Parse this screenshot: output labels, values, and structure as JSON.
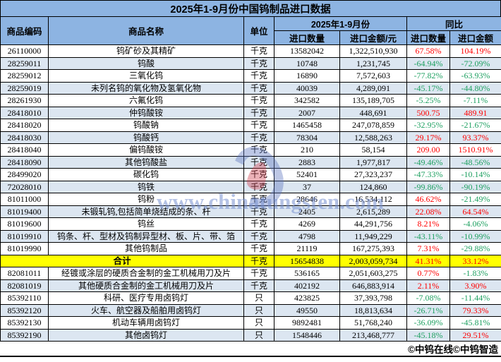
{
  "title": "2025年1-9月份中国钨制品进口数据",
  "table": {
    "headers": {
      "code": "商品编码",
      "name": "商品名称",
      "unit": "单位",
      "period_group": "2025年1-9月份",
      "yoy_group": "同比",
      "qty": "进口数量",
      "amount": "进口金额/元",
      "yoy_qty": "进口数量",
      "yoy_amount": "进口金额"
    },
    "rows": [
      {
        "code": "26110000",
        "name": "钨矿砂及其精矿",
        "unit": "千克",
        "qty": "13582042",
        "amount": "1,322,510,930",
        "yoy_qty": "67.58%",
        "yoy_amount": "104.19%"
      },
      {
        "code": "28259011",
        "name": "钨酸",
        "unit": "千克",
        "qty": "10748",
        "amount": "1,231,745",
        "yoy_qty": "-64.94%",
        "yoy_amount": "-72.09%"
      },
      {
        "code": "28259012",
        "name": "三氧化钨",
        "unit": "千克",
        "qty": "16890",
        "amount": "7,572,603",
        "yoy_qty": "-77.82%",
        "yoy_amount": "-63.93%"
      },
      {
        "code": "28259019",
        "name": "未列名钨的氧化物及氢氧化物",
        "unit": "千克",
        "qty": "40039",
        "amount": "4,289,091",
        "yoy_qty": "-45.17%",
        "yoy_amount": "-44.80%"
      },
      {
        "code": "28261930",
        "name": "六氟化钨",
        "unit": "千克",
        "qty": "342582",
        "amount": "135,189,705",
        "yoy_qty": "-5.25%",
        "yoy_amount": "-7.11%"
      },
      {
        "code": "28418010",
        "name": "仲钨酸铵",
        "unit": "千克",
        "qty": "2007",
        "amount": "448,691",
        "yoy_qty": "500.75",
        "yoy_amount": "489.91"
      },
      {
        "code": "28418020",
        "name": "钨酸钠",
        "unit": "千克",
        "qty": "1465458",
        "amount": "247,078,859",
        "yoy_qty": "-32.95%",
        "yoy_amount": "-21.67%"
      },
      {
        "code": "28418030",
        "name": "钨酸钙",
        "unit": "千克",
        "qty": "78304",
        "amount": "12,588,263",
        "yoy_qty": "29.17%",
        "yoy_amount": "93.37%"
      },
      {
        "code": "28418040",
        "name": "偏钨酸铵",
        "unit": "千克",
        "qty": "210",
        "amount": "58,154",
        "yoy_qty": "209.00",
        "yoy_amount": "1510.91%"
      },
      {
        "code": "28418090",
        "name": "其他钨酸盐",
        "unit": "千克",
        "qty": "2883",
        "amount": "1,977,817",
        "yoy_qty": "-49.46%",
        "yoy_amount": "-48.56%"
      },
      {
        "code": "28499020",
        "name": "碳化钨",
        "unit": "千克",
        "qty": "52401",
        "amount": "27,323,237",
        "yoy_qty": "-47.33%",
        "yoy_amount": "-10.14%"
      },
      {
        "code": "72028010",
        "name": "钨铁",
        "unit": "千克",
        "qty": "37",
        "amount": "124,860",
        "yoy_qty": "-99.86%",
        "yoy_amount": "-90.19%"
      },
      {
        "code": "81011000",
        "name": "钨粉",
        "unit": "千克",
        "qty": "28646",
        "amount": "16,534,112",
        "yoy_qty": "46.62%",
        "yoy_amount": "-21.49%"
      },
      {
        "code": "81019400",
        "name": "未锻轧钨,包括简单烧结成的条、杆",
        "unit": "千克",
        "qty": "2405",
        "amount": "2,615,289",
        "yoy_qty": "22.08%",
        "yoy_amount": "64.54%"
      },
      {
        "code": "81019600",
        "name": "钨丝",
        "unit": "千克",
        "qty": "4269",
        "amount": "44,291,756",
        "yoy_qty": "8.21%",
        "yoy_amount": "-4.06%"
      },
      {
        "code": "81019910",
        "name": "钨条、杆、型材及钨制异型材、板、片、带、箔",
        "unit": "千克",
        "qty": "4798",
        "amount": "11,949,229",
        "yoy_qty": "-43.11%",
        "yoy_amount": "-10.99%"
      },
      {
        "code": "81019990",
        "name": "其他钨制品",
        "unit": "千克",
        "qty": "21119",
        "amount": "167,275,393",
        "yoy_qty": "7.31%",
        "yoy_amount": "-29.88%"
      },
      {
        "is_total": true,
        "code": "",
        "name": "合计",
        "unit": "千克",
        "qty": "15654838",
        "amount": "2,003,059,734",
        "yoy_qty": "41.31%",
        "yoy_amount": "33.12%"
      },
      {
        "code": "82081011",
        "name": "经镀或涂层的硬质合金制的金工机械用刀及片",
        "unit": "千克",
        "qty": "536165",
        "amount": "2,051,603,275",
        "yoy_qty": "0.77%",
        "yoy_amount": "-1.83%"
      },
      {
        "code": "82081019",
        "name": "其他硬质合金制的金工机械用刀及片",
        "unit": "千克",
        "qty": "402192",
        "amount": "646,883,914",
        "yoy_qty": "2.11%",
        "yoy_amount": "3.90%"
      },
      {
        "code": "85392110",
        "name": "科研、医疗专用卤钨灯",
        "unit": "只",
        "qty": "423825",
        "amount": "37,393,798",
        "yoy_qty": "-7.08%",
        "yoy_amount": "-11.44%"
      },
      {
        "code": "85392120",
        "name": "火车、航空器及船舶用卤钨灯",
        "unit": "只",
        "qty": "49550",
        "amount": "18,813,634",
        "yoy_qty": "-26.71%",
        "yoy_amount": "79.33%"
      },
      {
        "code": "85392130",
        "name": "机动车辆用卤钨灯",
        "unit": "只",
        "qty": "9892481",
        "amount": "51,768,240",
        "yoy_qty": "-36.09%",
        "yoy_amount": "-45.81%"
      },
      {
        "code": "85392190",
        "name": "其他卤钨灯",
        "unit": "只",
        "qty": "1548446",
        "amount": "213,468,777",
        "yoy_qty": "-45.18%",
        "yoy_amount": "29.51%"
      }
    ]
  },
  "footer": {
    "credit": "©中钨在线©中钨智造"
  },
  "watermark": {
    "text": "www.chinatungsten.com",
    "logo": "chinatungsten-flame-logo"
  },
  "colors": {
    "positive": "#FF0000",
    "negative": "#20A162",
    "header_bg": "#8DB4E2",
    "alt_row_bg": "#DCE6F1",
    "total_row_bg": "#FFFF00"
  }
}
